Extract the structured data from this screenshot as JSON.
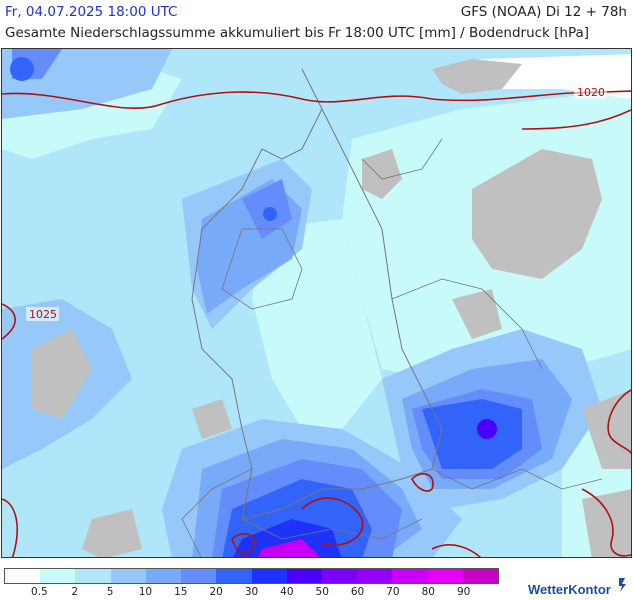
{
  "header": {
    "date": "Fr, 04.07.2025 18:00 UTC",
    "model": "GFS (NOAA) Di 12 + 78h",
    "subtitle": "Gesamte Niederschlagssumme akkumuliert bis Fr 18:00 UTC [mm] / Bodendruck [hPa]"
  },
  "isobars": [
    "1020",
    "1025"
  ],
  "legend": {
    "ticks": [
      "0.5",
      "2",
      "5",
      "10",
      "15",
      "20",
      "30",
      "40",
      "50",
      "60",
      "70",
      "80",
      "90"
    ],
    "colors": [
      "#ffffff",
      "#c8fafa",
      "#afe6fa",
      "#96c8fa",
      "#78aafa",
      "#648cfa",
      "#3264fa",
      "#1e32fa",
      "#4b00fa",
      "#7d00fa",
      "#9600fa",
      "#c800fa",
      "#e600fa",
      "#c800c8"
    ]
  },
  "brand": {
    "part1": "Wetter",
    "part2": "Kontor"
  },
  "colors": {
    "land_other": "#c0c0c0",
    "border": "#777777",
    "isobar": "#b01010"
  }
}
